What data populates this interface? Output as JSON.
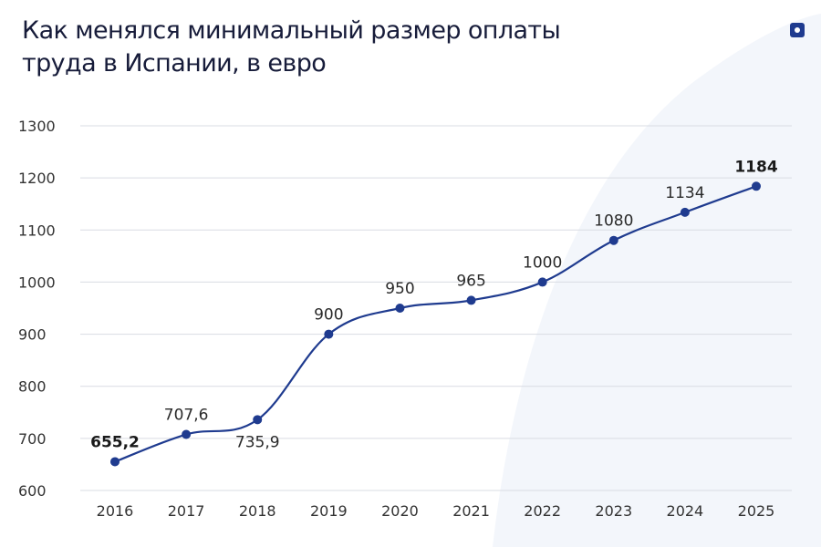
{
  "title_lines": [
    "Как менялся минимальный размер оплаты",
    "труда в Испании, в евро"
  ],
  "colors": {
    "line": "#1f3b8f",
    "marker": "#1f3b8f",
    "grid": "#d9dce3",
    "background_swoosh": "#f2f5fa"
  },
  "logo_icon": "square-dot-logo-icon",
  "chart_data": {
    "type": "line",
    "title": "Как менялся минимальный размер оплаты труда в Испании, в евро",
    "xlabel": "",
    "ylabel": "",
    "x": [
      "2016",
      "2017",
      "2018",
      "2019",
      "2020",
      "2021",
      "2022",
      "2023",
      "2024",
      "2025"
    ],
    "series": [
      {
        "values": [
          655.2,
          707.6,
          735.9,
          900,
          950,
          965,
          1000,
          1080,
          1134,
          1184
        ],
        "labels": [
          "655,2",
          "707,6",
          "735,9",
          "900",
          "950",
          "965",
          "1000",
          "1080",
          "1134",
          "1184"
        ],
        "bold_labels": [
          "655,2",
          "1184"
        ]
      }
    ],
    "ylim": [
      600,
      1300
    ],
    "yticks": [
      600,
      700,
      800,
      900,
      1000,
      1100,
      1200,
      1300
    ],
    "grid": true,
    "smooth": true,
    "legend": "none"
  }
}
